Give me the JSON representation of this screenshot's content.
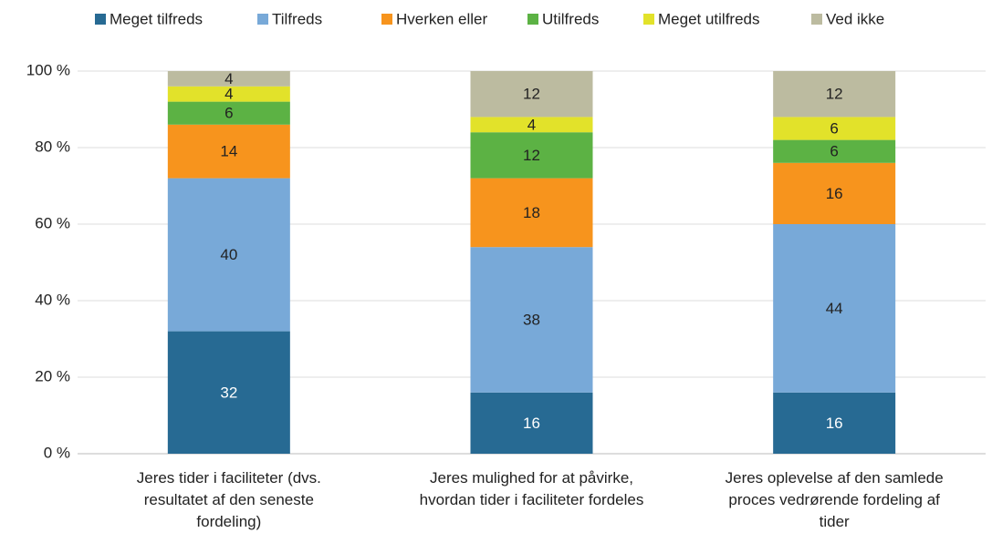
{
  "chart_data": {
    "type": "stacked_bar",
    "categories": [
      "Jeres tider i faciliteter (dvs. resultatet af den seneste fordeling)",
      "Jeres mulighed for at påvirke, hvordan tider i faciliteter fordeles",
      "Jeres oplevelse af den samlede proces vedrørende fordeling af tider"
    ],
    "series": [
      {
        "name": "Meget tilfreds",
        "color": "#276a93",
        "values": [
          32,
          16,
          16
        ]
      },
      {
        "name": "Tilfreds",
        "color": "#78a9d8",
        "values": [
          40,
          38,
          44
        ]
      },
      {
        "name": "Hverken eller",
        "color": "#f7941d",
        "values": [
          14,
          18,
          16
        ]
      },
      {
        "name": "Utilfreds",
        "color": "#5cb244",
        "values": [
          6,
          12,
          6
        ]
      },
      {
        "name": "Meget utilfreds",
        "color": "#e2e22a",
        "values": [
          4,
          4,
          6
        ]
      },
      {
        "name": "Ved ikke",
        "color": "#bcbba0",
        "values": [
          4,
          12,
          12
        ]
      }
    ],
    "ylim": [
      0,
      100
    ],
    "yticks": [
      {
        "value": 0,
        "label": "0 %"
      },
      {
        "value": 20,
        "label": "20 %"
      },
      {
        "value": 40,
        "label": "40 %"
      },
      {
        "value": 60,
        "label": "60 %"
      },
      {
        "value": 80,
        "label": "80 %"
      },
      {
        "value": 100,
        "label": "100 %"
      }
    ],
    "grid": true,
    "legend": "top"
  }
}
